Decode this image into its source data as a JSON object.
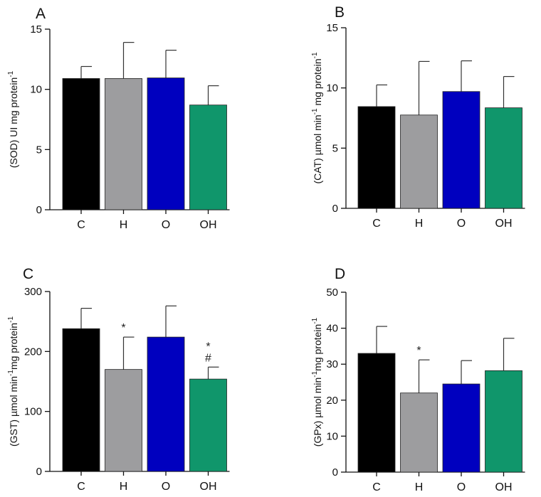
{
  "chart_data": [
    {
      "panel": "A",
      "type": "bar",
      "categories": [
        "C",
        "H",
        "O",
        "OH"
      ],
      "values": [
        10.9,
        10.9,
        10.95,
        8.7
      ],
      "errors": [
        1.0,
        3.0,
        2.3,
        1.6
      ],
      "significance": [
        "",
        "",
        "",
        ""
      ],
      "colors": [
        "#000000",
        "#9d9d9f",
        "#0000bf",
        "#10966b"
      ],
      "ylabel": "(SOD) UI mg protein",
      "ylabel_sup": "-1",
      "ylim": [
        0,
        15
      ],
      "yticks": [
        0,
        5,
        10,
        15
      ]
    },
    {
      "panel": "B",
      "type": "bar",
      "categories": [
        "C",
        "H",
        "O",
        "OH"
      ],
      "values": [
        8.45,
        7.75,
        9.7,
        8.35
      ],
      "errors": [
        1.8,
        4.45,
        2.55,
        2.6
      ],
      "significance": [
        "",
        "",
        "",
        ""
      ],
      "colors": [
        "#000000",
        "#9d9d9f",
        "#0000bf",
        "#10966b"
      ],
      "ylabel": "(CAT) µmol min",
      "ylabel_sup": "-1",
      "ylabel2": " mg protein",
      "ylabel2_sup": "-1",
      "ylim": [
        0,
        15
      ],
      "yticks": [
        0,
        5,
        10,
        15
      ]
    },
    {
      "panel": "C",
      "type": "bar",
      "categories": [
        "C",
        "H",
        "O",
        "OH"
      ],
      "values": [
        238,
        170,
        224,
        154
      ],
      "errors": [
        34,
        54,
        52,
        20
      ],
      "significance": [
        "",
        "*",
        "",
        "*#"
      ],
      "colors": [
        "#000000",
        "#9d9d9f",
        "#0000bf",
        "#10966b"
      ],
      "ylabel": "(GST) µmol min",
      "ylabel_sup": "-1",
      "ylabel2": "mg protein",
      "ylabel2_sup": "-1",
      "ylim": [
        0,
        300
      ],
      "yticks": [
        0,
        100,
        200,
        300
      ]
    },
    {
      "panel": "D",
      "type": "bar",
      "categories": [
        "C",
        "H",
        "O",
        "OH"
      ],
      "values": [
        33,
        22,
        24.5,
        28.2
      ],
      "errors": [
        7.5,
        9.2,
        6.5,
        9
      ],
      "significance": [
        "",
        "*",
        "",
        ""
      ],
      "colors": [
        "#000000",
        "#9d9d9f",
        "#0000bf",
        "#10966b"
      ],
      "ylabel": "(GPx) µmol min",
      "ylabel_sup": "-1",
      "ylabel2": "mg protein",
      "ylabel2_sup": "-1",
      "ylim": [
        0,
        50
      ],
      "yticks": [
        0,
        10,
        20,
        30,
        40,
        50
      ]
    }
  ]
}
